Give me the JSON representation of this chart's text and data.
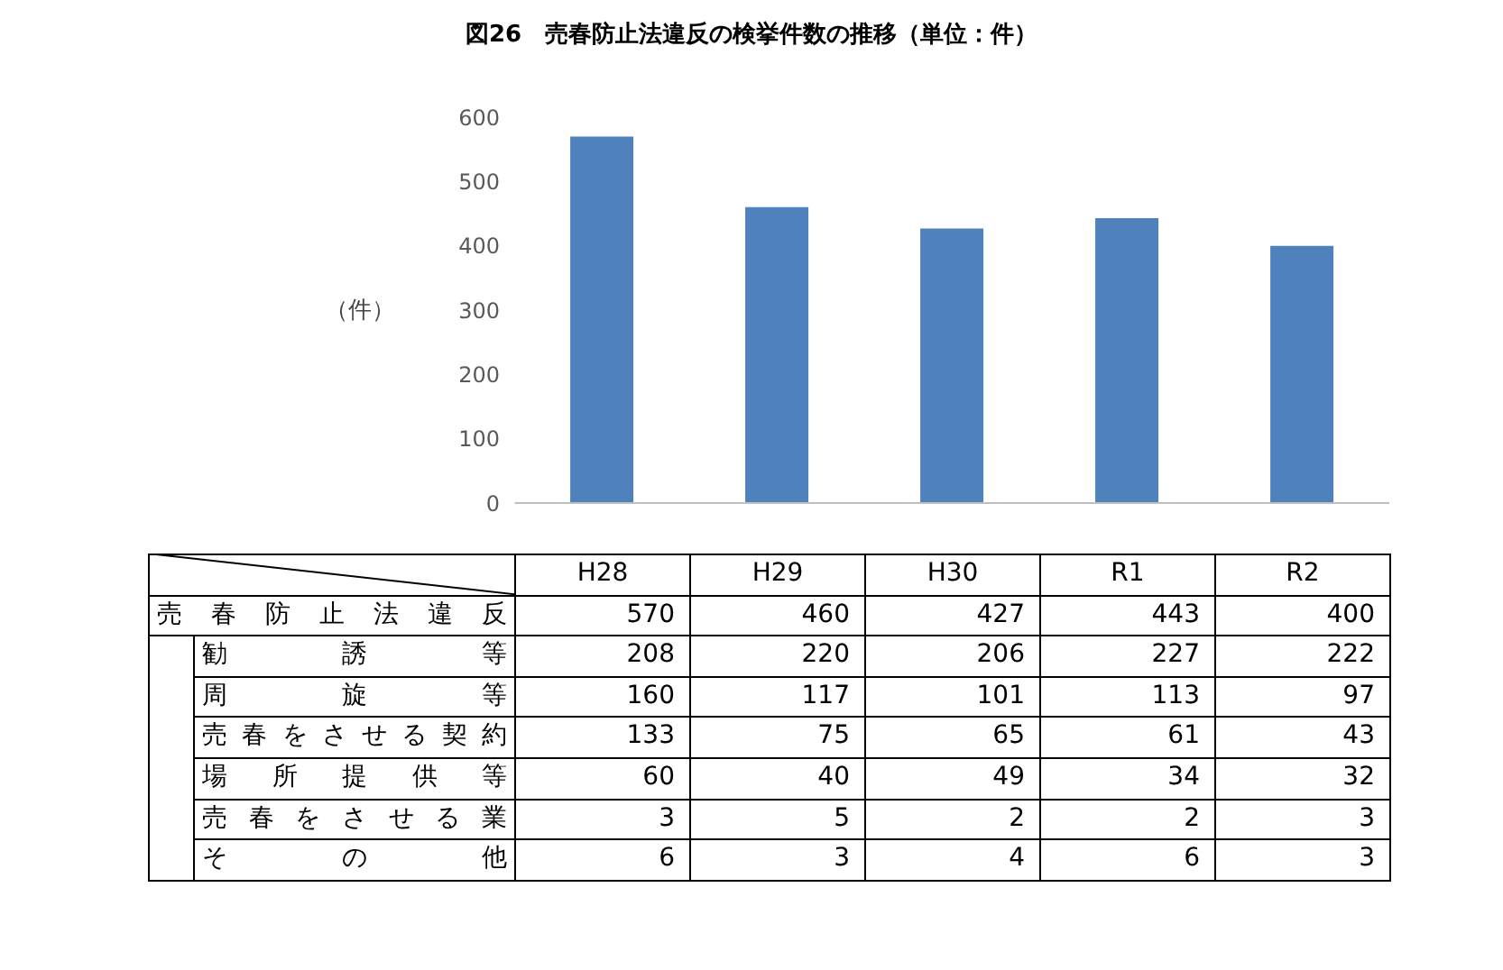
{
  "chart_data": [
    {
      "type": "bar",
      "title": "図26　売春防止法違反の検挙件数の推移（単位：件）",
      "ylabel": "（件）",
      "categories": [
        null,
        null,
        null,
        null,
        null
      ],
      "series": [
        {
          "color": "#4f81bd",
          "values": [
            570,
            460,
            427,
            443,
            400
          ]
        }
      ],
      "ylim": [
        0,
        600
      ],
      "yticks": [
        0,
        100,
        200,
        300,
        400,
        500,
        600
      ],
      "tick_labels": "y"
    },
    {
      "type": "other",
      "categories": [
        "H28",
        "H29",
        "H30",
        "R1",
        "R2"
      ],
      "series": [
        {
          "name": "売春防止法違反",
          "values": [
            570,
            460,
            427,
            443,
            400
          ]
        },
        {
          "name": "勧誘等",
          "values": [
            208,
            220,
            206,
            227,
            222
          ]
        },
        {
          "name": "周旋等",
          "values": [
            160,
            117,
            101,
            113,
            97
          ]
        },
        {
          "name": "売春をさせる契約",
          "values": [
            133,
            75,
            65,
            61,
            43
          ]
        },
        {
          "name": "場所提供等",
          "values": [
            60,
            40,
            49,
            34,
            32
          ]
        },
        {
          "name": "売春をさせる業",
          "values": [
            3,
            5,
            2,
            2,
            3
          ]
        },
        {
          "name": "その他",
          "values": [
            6,
            3,
            4,
            6,
            3
          ]
        }
      ],
      "data_labels": true
    }
  ]
}
